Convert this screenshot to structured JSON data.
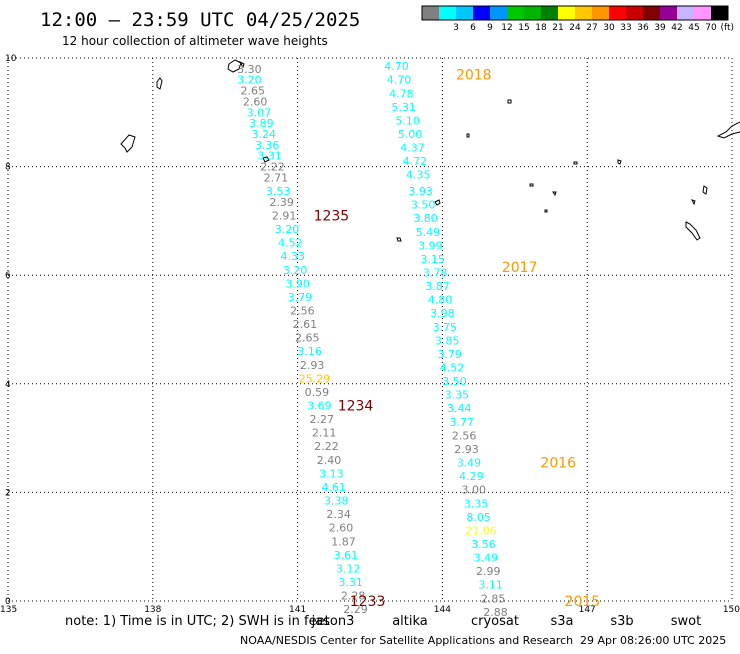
{
  "header": {
    "title": "12:00 – 23:59 UTC 04/25/2025",
    "subtitle": "12 hour collection of altimeter wave heights"
  },
  "colorbar": {
    "unit": "(ft)",
    "bins": [
      {
        "color": "#808080",
        "label": ""
      },
      {
        "color": "#00ffff",
        "label": "3"
      },
      {
        "color": "#00c8ff",
        "label": "6"
      },
      {
        "color": "#0000ff",
        "label": "9"
      },
      {
        "color": "#0096ff",
        "label": "12"
      },
      {
        "color": "#00c800",
        "label": "15"
      },
      {
        "color": "#00b400",
        "label": "18"
      },
      {
        "color": "#008000",
        "label": "21"
      },
      {
        "color": "#ffff00",
        "label": "24"
      },
      {
        "color": "#ffc800",
        "label": "27"
      },
      {
        "color": "#ff9600",
        "label": "30"
      },
      {
        "color": "#ff0000",
        "label": "33"
      },
      {
        "color": "#c80000",
        "label": "36"
      },
      {
        "color": "#800000",
        "label": "39"
      },
      {
        "color": "#960096",
        "label": "42"
      },
      {
        "color": "#c8b4ff",
        "label": "45"
      },
      {
        "color": "#ff96ff",
        "label": "70"
      },
      {
        "color": "#000000",
        "label": ""
      }
    ]
  },
  "chart_data": {
    "type": "scatter",
    "xlim": [
      135,
      150
    ],
    "ylim": [
      0,
      10
    ],
    "x_ticks": [
      "135",
      "138",
      "141",
      "144",
      "147",
      "150"
    ],
    "y_ticks": [
      "0",
      "2",
      "4",
      "6",
      "8",
      "10"
    ],
    "grid": true,
    "tracks": [
      {
        "label": "1233",
        "color": "#800000",
        "x": 142.45,
        "y": 0.0
      },
      {
        "label": "1235",
        "color": "#800000",
        "x": 141.7,
        "y": 7.1
      },
      {
        "label": "1234",
        "color": "#800000",
        "x": 142.2,
        "y": 3.6
      },
      {
        "label": "2018",
        "color": "#ff9600",
        "x": 144.65,
        "y": 9.7
      },
      {
        "label": "2017",
        "color": "#ff9600",
        "x": 145.6,
        "y": 6.15
      },
      {
        "label": "2016",
        "color": "#ff9600",
        "x": 146.4,
        "y": 2.55
      },
      {
        "label": "2015",
        "color": "#ff9600",
        "x": 146.9,
        "y": 0.0
      }
    ],
    "points": [
      {
        "x": 140.0,
        "y": 9.8,
        "v": "3.30",
        "c": "#808080"
      },
      {
        "x": 140.0,
        "y": 9.6,
        "v": "3.20",
        "c": "#00ffff"
      },
      {
        "x": 140.07,
        "y": 9.4,
        "v": "2.65",
        "c": "#808080"
      },
      {
        "x": 140.12,
        "y": 9.2,
        "v": "2.60",
        "c": "#808080"
      },
      {
        "x": 140.2,
        "y": 9.0,
        "v": "3.07",
        "c": "#00ffff"
      },
      {
        "x": 140.25,
        "y": 8.8,
        "v": "3.89",
        "c": "#00ffff"
      },
      {
        "x": 140.3,
        "y": 8.6,
        "v": "3.24",
        "c": "#00ffff"
      },
      {
        "x": 140.37,
        "y": 8.4,
        "v": "3.36",
        "c": "#00ffff"
      },
      {
        "x": 140.42,
        "y": 8.2,
        "v": "3.31",
        "c": "#00ffff"
      },
      {
        "x": 140.48,
        "y": 8.0,
        "v": "2.22",
        "c": "#808080"
      },
      {
        "x": 140.55,
        "y": 7.8,
        "v": "2.71",
        "c": "#808080"
      },
      {
        "x": 140.6,
        "y": 7.55,
        "v": "3.53",
        "c": "#00ffff"
      },
      {
        "x": 140.67,
        "y": 7.35,
        "v": "2.39",
        "c": "#808080"
      },
      {
        "x": 140.72,
        "y": 7.1,
        "v": "2.91",
        "c": "#808080"
      },
      {
        "x": 140.78,
        "y": 6.85,
        "v": "3.20",
        "c": "#00ffff"
      },
      {
        "x": 140.85,
        "y": 6.6,
        "v": "4.52",
        "c": "#00ffff"
      },
      {
        "x": 140.9,
        "y": 6.35,
        "v": "4.33",
        "c": "#00ffff"
      },
      {
        "x": 140.95,
        "y": 6.1,
        "v": "3.20",
        "c": "#00ffff"
      },
      {
        "x": 141.0,
        "y": 5.85,
        "v": "3.90",
        "c": "#00ffff"
      },
      {
        "x": 141.05,
        "y": 5.6,
        "v": "3.79",
        "c": "#00ffff"
      },
      {
        "x": 141.1,
        "y": 5.35,
        "v": "2.56",
        "c": "#808080"
      },
      {
        "x": 141.15,
        "y": 5.1,
        "v": "2.61",
        "c": "#808080"
      },
      {
        "x": 141.2,
        "y": 4.85,
        "v": "2.65",
        "c": "#808080"
      },
      {
        "x": 141.25,
        "y": 4.6,
        "v": "3.16",
        "c": "#00ffff"
      },
      {
        "x": 141.3,
        "y": 4.35,
        "v": "2.93",
        "c": "#808080"
      },
      {
        "x": 141.35,
        "y": 4.1,
        "v": "25.29",
        "c": "#ffc800"
      },
      {
        "x": 141.4,
        "y": 3.85,
        "v": "0.59",
        "c": "#808080"
      },
      {
        "x": 141.45,
        "y": 3.6,
        "v": "3.69",
        "c": "#00ffff"
      },
      {
        "x": 141.5,
        "y": 3.35,
        "v": "2.27",
        "c": "#808080"
      },
      {
        "x": 141.55,
        "y": 3.1,
        "v": "2.11",
        "c": "#808080"
      },
      {
        "x": 141.6,
        "y": 2.85,
        "v": "2.22",
        "c": "#808080"
      },
      {
        "x": 141.65,
        "y": 2.6,
        "v": "2.40",
        "c": "#808080"
      },
      {
        "x": 141.7,
        "y": 2.35,
        "v": "3.13",
        "c": "#00ffff"
      },
      {
        "x": 141.75,
        "y": 2.1,
        "v": "4.61",
        "c": "#00ffff"
      },
      {
        "x": 141.8,
        "y": 1.85,
        "v": "3.38",
        "c": "#00ffff"
      },
      {
        "x": 141.85,
        "y": 1.6,
        "v": "2.34",
        "c": "#808080"
      },
      {
        "x": 141.9,
        "y": 1.35,
        "v": "2.60",
        "c": "#808080"
      },
      {
        "x": 141.95,
        "y": 1.1,
        "v": "1.87",
        "c": "#808080"
      },
      {
        "x": 142.0,
        "y": 0.85,
        "v": "3.61",
        "c": "#00ffff"
      },
      {
        "x": 142.05,
        "y": 0.6,
        "v": "3.12",
        "c": "#00ffff"
      },
      {
        "x": 142.1,
        "y": 0.35,
        "v": "3.31",
        "c": "#00ffff"
      },
      {
        "x": 142.15,
        "y": 0.1,
        "v": "2.28",
        "c": "#808080"
      },
      {
        "x": 142.2,
        "y": -0.15,
        "v": "2.29",
        "c": "#808080"
      },
      {
        "x": 143.05,
        "y": 9.85,
        "v": "4.70",
        "c": "#00ffff"
      },
      {
        "x": 143.1,
        "y": 9.6,
        "v": "4.70",
        "c": "#00ffff"
      },
      {
        "x": 143.15,
        "y": 9.35,
        "v": "4.78",
        "c": "#00ffff"
      },
      {
        "x": 143.2,
        "y": 9.1,
        "v": "5.31",
        "c": "#00ffff"
      },
      {
        "x": 143.28,
        "y": 8.85,
        "v": "5.10",
        "c": "#00ffff"
      },
      {
        "x": 143.33,
        "y": 8.6,
        "v": "5.00",
        "c": "#00ffff"
      },
      {
        "x": 143.38,
        "y": 8.35,
        "v": "4.37",
        "c": "#00ffff"
      },
      {
        "x": 143.43,
        "y": 8.1,
        "v": "4.72",
        "c": "#00ffff"
      },
      {
        "x": 143.5,
        "y": 7.85,
        "v": "4.35",
        "c": "#00ffff"
      },
      {
        "x": 143.55,
        "y": 7.55,
        "v": "3.93",
        "c": "#00ffff"
      },
      {
        "x": 143.6,
        "y": 7.3,
        "v": "3.50",
        "c": "#00ffff"
      },
      {
        "x": 143.65,
        "y": 7.05,
        "v": "3.80",
        "c": "#00ffff"
      },
      {
        "x": 143.7,
        "y": 6.8,
        "v": "5.49",
        "c": "#00ffff"
      },
      {
        "x": 143.75,
        "y": 6.55,
        "v": "3.99",
        "c": "#00ffff"
      },
      {
        "x": 143.8,
        "y": 6.3,
        "v": "3.15",
        "c": "#00ffff"
      },
      {
        "x": 143.85,
        "y": 6.05,
        "v": "3.78",
        "c": "#00ffff"
      },
      {
        "x": 143.9,
        "y": 5.8,
        "v": "3.87",
        "c": "#00ffff"
      },
      {
        "x": 143.95,
        "y": 5.55,
        "v": "4.80",
        "c": "#00ffff"
      },
      {
        "x": 144.0,
        "y": 5.3,
        "v": "3.98",
        "c": "#00ffff"
      },
      {
        "x": 144.05,
        "y": 5.05,
        "v": "3.75",
        "c": "#00ffff"
      },
      {
        "x": 144.1,
        "y": 4.8,
        "v": "3.85",
        "c": "#00ffff"
      },
      {
        "x": 144.15,
        "y": 4.55,
        "v": "3.79",
        "c": "#00ffff"
      },
      {
        "x": 144.2,
        "y": 4.3,
        "v": "4.52",
        "c": "#00ffff"
      },
      {
        "x": 144.25,
        "y": 4.05,
        "v": "3.50",
        "c": "#00ffff"
      },
      {
        "x": 144.3,
        "y": 3.8,
        "v": "3.35",
        "c": "#00ffff"
      },
      {
        "x": 144.35,
        "y": 3.55,
        "v": "3.44",
        "c": "#00ffff"
      },
      {
        "x": 144.4,
        "y": 3.3,
        "v": "3.77",
        "c": "#00ffff"
      },
      {
        "x": 144.45,
        "y": 3.05,
        "v": "2.56",
        "c": "#808080"
      },
      {
        "x": 144.5,
        "y": 2.8,
        "v": "2.93",
        "c": "#808080"
      },
      {
        "x": 144.55,
        "y": 2.55,
        "v": "3.49",
        "c": "#00ffff"
      },
      {
        "x": 144.6,
        "y": 2.3,
        "v": "4.29",
        "c": "#00ffff"
      },
      {
        "x": 144.65,
        "y": 2.05,
        "v": "3.00",
        "c": "#808080"
      },
      {
        "x": 144.7,
        "y": 1.8,
        "v": "3.35",
        "c": "#00ffff"
      },
      {
        "x": 144.75,
        "y": 1.55,
        "v": "8.05",
        "c": "#00ffff"
      },
      {
        "x": 144.8,
        "y": 1.3,
        "v": "21.06",
        "c": "#ffff00"
      },
      {
        "x": 144.85,
        "y": 1.05,
        "v": "3.56",
        "c": "#00ffff"
      },
      {
        "x": 144.9,
        "y": 0.8,
        "v": "3.49",
        "c": "#00ffff"
      },
      {
        "x": 144.95,
        "y": 0.55,
        "v": "2.99",
        "c": "#808080"
      },
      {
        "x": 145.0,
        "y": 0.3,
        "v": "3.11",
        "c": "#00ffff"
      },
      {
        "x": 145.05,
        "y": 0.05,
        "v": "2.85",
        "c": "#808080"
      },
      {
        "x": 145.1,
        "y": -0.2,
        "v": "2.88",
        "c": "#808080"
      }
    ]
  },
  "footer": {
    "note": "note:  1) Time is in UTC; 2) SWH is in feet",
    "satellites": [
      {
        "name": "jason3",
        "color": "#008000"
      },
      {
        "name": "altika",
        "color": "#ff9600"
      },
      {
        "name": "cryosat",
        "color": "#ff0000"
      },
      {
        "name": "s3a",
        "color": "#800000"
      },
      {
        "name": "s3b",
        "color": "#c8b4ff"
      },
      {
        "name": "swot",
        "color": "#ff96ff"
      }
    ],
    "credit": "NOAA/NESDIS Center for Satellite Applications and Research",
    "timestamp": "29 Apr 08:26:00 UTC 2025"
  }
}
